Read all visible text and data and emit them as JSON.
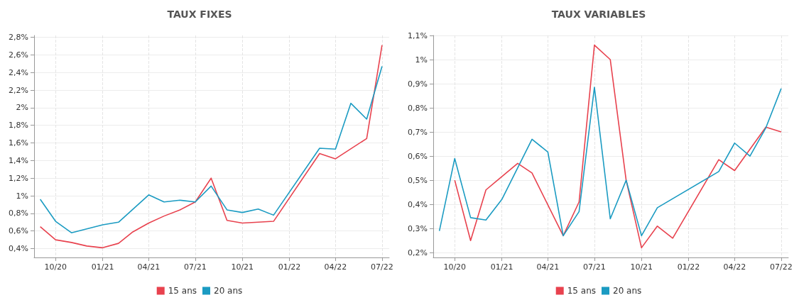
{
  "chart_data": [
    {
      "type": "line",
      "title": "TAUX FIXES",
      "xlim": [
        "2020-08-20",
        "2022-07-15"
      ],
      "ylim": [
        0.3,
        2.82
      ],
      "xticks": [
        {
          "value": "2020-10",
          "label": "10/20"
        },
        {
          "value": "2021-01",
          "label": "01/21"
        },
        {
          "value": "2021-04",
          "label": "04/21"
        },
        {
          "value": "2021-07",
          "label": "07/21"
        },
        {
          "value": "2021-10",
          "label": "10/21"
        },
        {
          "value": "2022-01",
          "label": "01/22"
        },
        {
          "value": "2022-04",
          "label": "04/22"
        },
        {
          "value": "2022-07",
          "label": "07/22"
        }
      ],
      "yticks": [
        {
          "value": 0.4,
          "label": "0,4%"
        },
        {
          "value": 0.6,
          "label": "0,6%"
        },
        {
          "value": 0.8,
          "label": "0,8%"
        },
        {
          "value": 1,
          "label": "1%"
        },
        {
          "value": 1.2,
          "label": "1,2%"
        },
        {
          "value": 1.4,
          "label": "1,4%"
        },
        {
          "value": 1.6,
          "label": "1,6%"
        },
        {
          "value": 1.8,
          "label": "1,8%"
        },
        {
          "value": 2,
          "label": "2%"
        },
        {
          "value": 2.2,
          "label": "2,2%"
        },
        {
          "value": 2.4,
          "label": "2,4%"
        },
        {
          "value": 2.6,
          "label": "2,6%"
        },
        {
          "value": 2.8,
          "label": "2,8%"
        }
      ],
      "grid": true,
      "legend": "bottom",
      "marker": "none",
      "series": [
        {
          "name": "15 ans",
          "color": "#e8424e",
          "x": [
            "2020-09",
            "2020-10",
            "2020-11",
            "2020-12",
            "2021-01",
            "2021-02",
            "2021-03",
            "2021-04",
            "2021-05",
            "2021-06",
            "2021-07",
            "2021-08",
            "2021-09",
            "2021-10",
            "2021-11",
            "2021-12",
            "2022-03",
            "2022-04",
            "2022-06",
            "2022-07"
          ],
          "values": [
            0.65,
            0.5,
            0.47,
            0.43,
            0.41,
            0.46,
            0.59,
            0.69,
            0.77,
            0.84,
            0.93,
            1.2,
            0.72,
            0.69,
            0.7,
            0.71,
            1.48,
            1.42,
            1.65,
            2.71
          ]
        },
        {
          "name": "20 ans",
          "color": "#1b9bc2",
          "x": [
            "2020-09",
            "2020-10",
            "2020-11",
            "2021-01",
            "2021-02",
            "2021-04",
            "2021-05",
            "2021-06",
            "2021-07",
            "2021-08",
            "2021-09",
            "2021-10",
            "2021-11",
            "2021-12",
            "2022-03",
            "2022-04",
            "2022-05",
            "2022-06",
            "2022-07"
          ],
          "values": [
            0.96,
            0.71,
            0.58,
            0.67,
            0.7,
            1.01,
            0.93,
            0.95,
            0.93,
            1.11,
            0.84,
            0.81,
            0.85,
            0.78,
            1.54,
            1.53,
            2.05,
            1.87,
            2.47
          ]
        }
      ]
    },
    {
      "type": "line",
      "title": "TAUX VARIABLES",
      "xlim": [
        "2020-08-20",
        "2022-07-15"
      ],
      "ylim": [
        0.18,
        1.1
      ],
      "xticks": [
        {
          "value": "2020-10",
          "label": "10/20"
        },
        {
          "value": "2021-01",
          "label": "01/21"
        },
        {
          "value": "2021-04",
          "label": "04/21"
        },
        {
          "value": "2021-07",
          "label": "07/21"
        },
        {
          "value": "2021-10",
          "label": "10/21"
        },
        {
          "value": "2022-01",
          "label": "01/22"
        },
        {
          "value": "2022-04",
          "label": "04/22"
        },
        {
          "value": "2022-07",
          "label": "07/22"
        }
      ],
      "yticks": [
        {
          "value": 0.2,
          "label": "0,2%"
        },
        {
          "value": 0.3,
          "label": "0,3%"
        },
        {
          "value": 0.4,
          "label": "0,4%"
        },
        {
          "value": 0.5,
          "label": "0,5%"
        },
        {
          "value": 0.6,
          "label": "0,6%"
        },
        {
          "value": 0.7,
          "label": "0,7%"
        },
        {
          "value": 0.8,
          "label": "0,8%"
        },
        {
          "value": 0.9,
          "label": "0,9%"
        },
        {
          "value": 1,
          "label": "1%"
        },
        {
          "value": 1.1,
          "label": "1,1%"
        }
      ],
      "grid": true,
      "legend": "bottom",
      "marker": "none",
      "series": [
        {
          "name": "15 ans",
          "color": "#e8424e",
          "x": [
            "2020-10",
            "2020-11",
            "2020-12",
            "2021-02",
            "2021-03",
            "2021-05",
            "2021-06",
            "2021-07",
            "2021-08",
            "2021-09",
            "2021-10",
            "2021-11",
            "2021-12",
            "2022-03",
            "2022-04",
            "2022-06",
            "2022-07"
          ],
          "values": [
            0.5,
            0.25,
            0.46,
            0.57,
            0.53,
            0.27,
            0.41,
            1.06,
            1.0,
            0.5,
            0.22,
            0.31,
            0.26,
            0.585,
            0.54,
            0.72,
            0.7
          ]
        },
        {
          "name": "20 ans",
          "color": "#1b9bc2",
          "x": [
            "2020-09",
            "2020-10",
            "2020-11",
            "2020-12",
            "2021-01",
            "2021-03",
            "2021-04",
            "2021-05",
            "2021-06",
            "2021-07",
            "2021-08",
            "2021-09",
            "2021-10",
            "2021-11",
            "2022-03",
            "2022-04",
            "2022-05",
            "2022-06",
            "2022-07"
          ],
          "values": [
            0.29,
            0.59,
            0.345,
            0.335,
            0.42,
            0.67,
            0.617,
            0.27,
            0.37,
            0.885,
            0.34,
            0.5,
            0.27,
            0.386,
            0.536,
            0.654,
            0.6,
            0.717,
            0.88
          ]
        }
      ]
    }
  ]
}
